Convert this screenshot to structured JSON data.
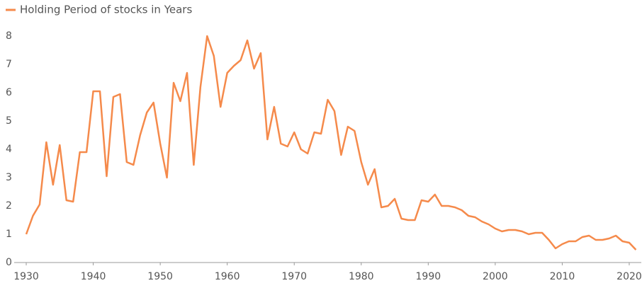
{
  "chart_data": {
    "type": "line",
    "x": [
      1930,
      1931,
      1932,
      1933,
      1934,
      1935,
      1936,
      1937,
      1938,
      1939,
      1940,
      1941,
      1942,
      1943,
      1944,
      1945,
      1946,
      1947,
      1948,
      1949,
      1950,
      1951,
      1952,
      1953,
      1954,
      1955,
      1956,
      1957,
      1958,
      1959,
      1960,
      1961,
      1962,
      1963,
      1964,
      1965,
      1966,
      1967,
      1968,
      1969,
      1970,
      1971,
      1972,
      1973,
      1974,
      1975,
      1976,
      1977,
      1978,
      1979,
      1980,
      1981,
      1982,
      1983,
      1984,
      1985,
      1986,
      1987,
      1988,
      1989,
      1990,
      1991,
      1992,
      1993,
      1994,
      1995,
      1996,
      1997,
      1998,
      1999,
      2000,
      2001,
      2002,
      2003,
      2004,
      2005,
      2006,
      2007,
      2008,
      2009,
      2010,
      2011,
      2012,
      2013,
      2014,
      2015,
      2016,
      2017,
      2018,
      2019,
      2020,
      2021
    ],
    "series": [
      {
        "name": "Holding Period of stocks in Years",
        "color": "#f58a4b",
        "values": [
          1.0,
          1.65,
          2.05,
          4.25,
          2.75,
          4.15,
          2.2,
          2.15,
          3.9,
          3.9,
          6.05,
          6.05,
          3.05,
          5.85,
          5.95,
          3.55,
          3.45,
          4.5,
          5.3,
          5.65,
          4.2,
          3.0,
          6.35,
          5.7,
          6.7,
          3.45,
          6.2,
          8.0,
          7.3,
          5.5,
          6.7,
          6.95,
          7.15,
          7.85,
          6.85,
          7.4,
          4.35,
          5.5,
          4.2,
          4.1,
          4.6,
          4.0,
          3.85,
          4.6,
          4.55,
          5.75,
          5.35,
          3.8,
          4.8,
          4.65,
          3.55,
          2.75,
          3.3,
          1.95,
          2.0,
          2.25,
          1.55,
          1.5,
          1.5,
          2.2,
          2.15,
          2.4,
          2.0,
          2.0,
          1.95,
          1.85,
          1.65,
          1.6,
          1.45,
          1.35,
          1.2,
          1.1,
          1.15,
          1.15,
          1.1,
          1.0,
          1.05,
          1.05,
          0.8,
          0.5,
          0.65,
          0.75,
          0.75,
          0.9,
          0.95,
          0.8,
          0.8,
          0.85,
          0.95,
          0.75,
          0.7,
          0.45
        ]
      }
    ],
    "xlim": [
      1928.2,
      2021.8
    ],
    "xticks": [
      1930,
      1940,
      1950,
      1960,
      1970,
      1980,
      1990,
      2000,
      2010,
      2020
    ],
    "ylim": [
      0,
      8
    ],
    "yticks": [
      0,
      1,
      2,
      3,
      4,
      5,
      6,
      7,
      8
    ],
    "grid": false,
    "legend": "top-left"
  }
}
